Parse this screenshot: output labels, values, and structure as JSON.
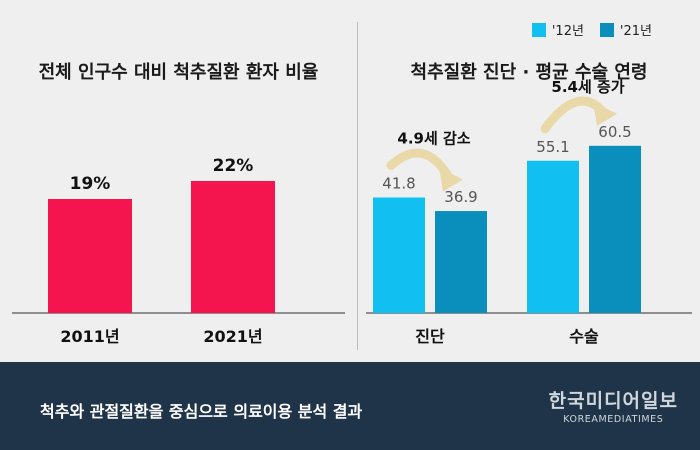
{
  "colors": {
    "bar_left": "#f5154e",
    "series_2012": "#11bff0",
    "series_2021": "#0a8fbc",
    "footer_bg": "#1f3448",
    "arrow": "#ead9a8"
  },
  "chart_data": [
    {
      "type": "bar",
      "title": "전체 인구수 대비 척추질환 환자 비율",
      "categories": [
        "2011년",
        "2021년"
      ],
      "values": [
        19,
        22
      ],
      "value_labels": [
        "19%",
        "22%"
      ],
      "unit": "%",
      "ylim": [
        0,
        40
      ],
      "grid": false,
      "legend": "none"
    },
    {
      "type": "bar",
      "title": "척추질환 진단 · 평균 수술 연령",
      "categories": [
        "진단",
        "수술"
      ],
      "series": [
        {
          "name": "'12년",
          "values": [
            41.8,
            55.1
          ]
        },
        {
          "name": "'21년",
          "values": [
            36.9,
            60.5
          ]
        }
      ],
      "ylim": [
        0,
        76
      ],
      "grid": false,
      "legend": "top-right",
      "annotations": [
        "4.9세 감소",
        "5.4세 증가"
      ]
    }
  ],
  "footer": {
    "caption": "척추와 관절질환을 중심으로 의료이용 분석 결과",
    "brand_korean": "한국미디어일보",
    "brand_english": "KOREAMEDIATIMES"
  }
}
